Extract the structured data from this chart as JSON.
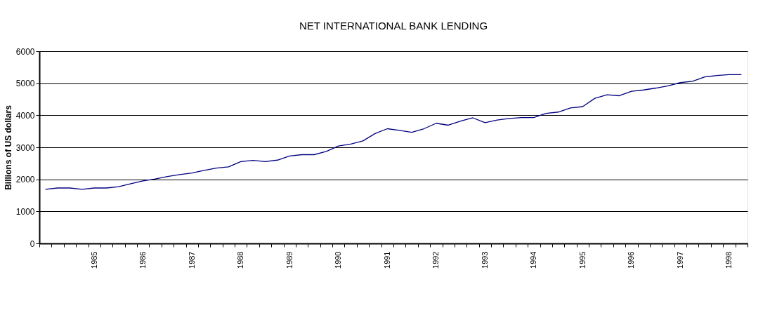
{
  "chart_data": {
    "type": "line",
    "title": "NET INTERNATIONAL BANK LENDING",
    "ylabel": "Billions of US dollars",
    "categories": [
      null,
      null,
      null,
      null,
      "1985",
      null,
      null,
      null,
      "1986",
      null,
      null,
      null,
      "1987",
      null,
      null,
      null,
      "1988",
      null,
      null,
      null,
      "1989",
      null,
      null,
      null,
      "1990",
      null,
      null,
      null,
      "1991",
      null,
      null,
      null,
      "1992",
      null,
      null,
      null,
      "1993",
      null,
      null,
      null,
      "1994",
      null,
      null,
      null,
      "1995",
      null,
      null,
      null,
      "1996",
      null,
      null,
      null,
      "1997",
      null,
      null,
      null,
      "1998",
      null
    ],
    "series": [
      {
        "color": "#000080",
        "values": [
          1690,
          1730,
          1730,
          1690,
          1730,
          1730,
          1770,
          1865,
          1950,
          2010,
          2090,
          2150,
          2200,
          2280,
          2350,
          2390,
          2555,
          2590,
          2555,
          2600,
          2730,
          2770,
          2770,
          2870,
          3040,
          3100,
          3200,
          3430,
          3580,
          3530,
          3470,
          3580,
          3750,
          3690,
          3820,
          3920,
          3770,
          3850,
          3900,
          3930,
          3930,
          4060,
          4100,
          4230,
          4270,
          4530,
          4640,
          4610,
          4750,
          4790,
          4850,
          4920,
          5020,
          5060,
          5200,
          5240,
          5270,
          5270
        ]
      }
    ],
    "ylim": [
      0,
      6000
    ],
    "yticks": [
      0,
      1000,
      2000,
      3000,
      4000,
      5000,
      6000
    ],
    "grid": "y",
    "marker": "none",
    "line_style": "solid"
  }
}
